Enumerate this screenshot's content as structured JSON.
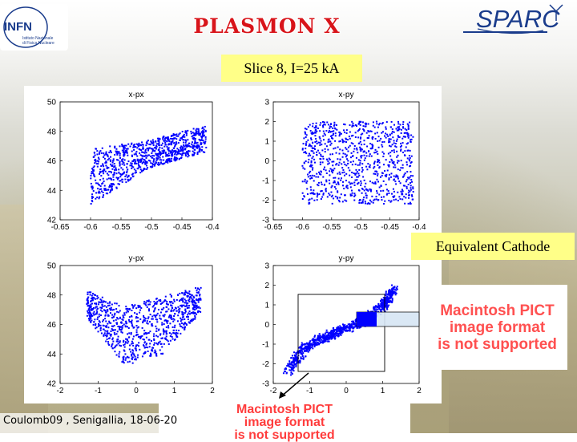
{
  "header": {
    "title": "PLASMON X",
    "slice_label": "Slice 8,  I=25 kA",
    "infn_logo_text": "INFN",
    "infn_logo_sub_1": "Istituto Nazionale",
    "infn_logo_sub_2": "di Fisica Nucleare",
    "sparc_logo_text": "SPARC"
  },
  "annotation": {
    "equivalent_cathode": "Equivalent Cathode"
  },
  "placeholders": {
    "pict_line_1": "Macintosh PICT",
    "pict_line_2": "image format",
    "pict_line_3": "is not supported"
  },
  "footer": {
    "text": "Coulomb09 , Senigallia, 18-06-20"
  },
  "colors": {
    "title": "#d8141a",
    "points": "#0000ff",
    "highlight": "#ffff88",
    "pict_text": "#ff5050"
  },
  "chart_data": [
    {
      "type": "scatter",
      "title": "x-px",
      "xlim": [
        -0.65,
        -0.4
      ],
      "ylim": [
        42,
        50
      ],
      "xticks": [
        -0.65,
        -0.6,
        -0.55,
        -0.5,
        -0.45,
        -0.4
      ],
      "xtick_labels": [
        "-0.65",
        "-0.6",
        "-0.55",
        "-0.5",
        "-0.45",
        "-0.4"
      ],
      "yticks": [
        42,
        44,
        46,
        48,
        50
      ],
      "ytick_labels": [
        "42",
        "44",
        "46",
        "48",
        "50"
      ],
      "shape": {
        "kind": "band",
        "x_range": [
          -0.6,
          -0.41
        ],
        "lower": [
          43.0,
          45.5,
          46.6
        ],
        "upper": [
          46.8,
          47.4,
          48.4
        ]
      }
    },
    {
      "type": "scatter",
      "title": "x-py",
      "xlim": [
        -0.65,
        -0.4
      ],
      "ylim": [
        -3,
        3
      ],
      "xticks": [
        -0.65,
        -0.6,
        -0.55,
        -0.5,
        -0.45,
        -0.4
      ],
      "xtick_labels": [
        "-0.65",
        "-0.6",
        "-0.55",
        "-0.5",
        "-0.45",
        "-0.4"
      ],
      "yticks": [
        -3,
        -2,
        -1,
        0,
        1,
        2,
        3
      ],
      "ytick_labels": [
        "-3",
        "-2",
        "-1",
        "0",
        "1",
        "2",
        "3"
      ],
      "shape": {
        "kind": "rect",
        "x_range": [
          -0.6,
          -0.41
        ],
        "y_range": [
          -2.2,
          2.0
        ]
      }
    },
    {
      "type": "scatter",
      "title": "y-px",
      "xlim": [
        -2,
        2
      ],
      "ylim": [
        42,
        50
      ],
      "xticks": [
        -2,
        -1,
        0,
        1,
        2
      ],
      "xtick_labels": [
        "-2",
        "-1",
        "0",
        "1",
        "2"
      ],
      "yticks": [
        42,
        44,
        46,
        48,
        50
      ],
      "ytick_labels": [
        "42",
        "44",
        "46",
        "48",
        "50"
      ],
      "shape": {
        "kind": "u",
        "x_range": [
          -1.3,
          1.7
        ],
        "lower": [
          46.5,
          43.2,
          44.0,
          46.8
        ],
        "upper": [
          48.3,
          47.2,
          47.9,
          48.6
        ]
      }
    },
    {
      "type": "scatter",
      "title": "y-py",
      "xlim": [
        -2,
        2
      ],
      "ylim": [
        -3,
        3
      ],
      "xticks": [
        -2,
        -1,
        0,
        1,
        2
      ],
      "xtick_labels": [
        "-2",
        "-1",
        "0",
        "1",
        "2"
      ],
      "yticks": [
        -3,
        -2,
        -1,
        0,
        1,
        2,
        3
      ],
      "ytick_labels": [
        "-3",
        "-2",
        "-1",
        "0",
        "1",
        "2",
        "3"
      ],
      "shape": {
        "kind": "diagonal",
        "points": [
          [
            -1.6,
            -2.4
          ],
          [
            -1.1,
            -1.1
          ],
          [
            -0.4,
            -0.5
          ],
          [
            0.4,
            0.1
          ],
          [
            1.0,
            0.9
          ],
          [
            1.3,
            1.8
          ]
        ]
      }
    }
  ]
}
